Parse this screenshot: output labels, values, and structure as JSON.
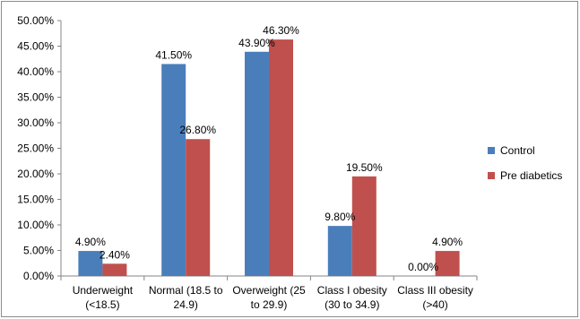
{
  "chart_data": {
    "type": "bar",
    "categories": [
      [
        "Underweight",
        "(<18.5)"
      ],
      [
        "Normal (18.5 to",
        "24.9)"
      ],
      [
        "Overweight (25",
        "to 29.9)"
      ],
      [
        "Class I obesity",
        "(30 to 34.9)"
      ],
      [
        "Class III obesity",
        "(>40)"
      ]
    ],
    "series": [
      {
        "name": "Control",
        "color": "#4a7ebb",
        "values": [
          4.9,
          41.5,
          43.9,
          9.8,
          0.0
        ],
        "labels": [
          "4.90%",
          "41.50%",
          "43.90%",
          "9.80%",
          "0.00%"
        ]
      },
      {
        "name": "Pre diabetics",
        "color": "#c0504d",
        "values": [
          2.4,
          26.8,
          46.3,
          19.5,
          4.9
        ],
        "labels": [
          "2.40%",
          "26.80%",
          "46.30%",
          "19.50%",
          "4.90%"
        ]
      }
    ],
    "yticks": [
      "0.00%",
      "5.00%",
      "10.00%",
      "15.00%",
      "20.00%",
      "25.00%",
      "30.00%",
      "35.00%",
      "40.00%",
      "45.00%",
      "50.00%"
    ],
    "ylim": [
      0,
      50
    ],
    "title": "",
    "xlabel": "",
    "ylabel": "",
    "grid": false,
    "legend": "right"
  }
}
